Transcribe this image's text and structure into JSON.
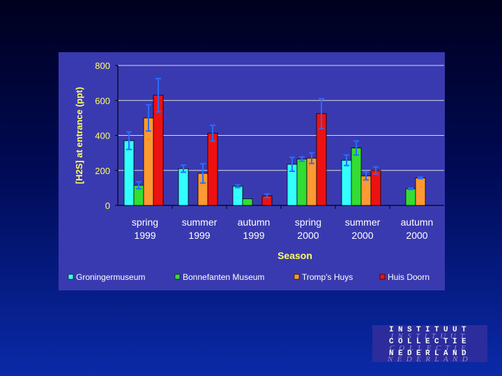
{
  "chart_data": {
    "type": "bar",
    "categories": [
      [
        "spring",
        "1999"
      ],
      [
        "summer",
        "1999"
      ],
      [
        "autumn",
        "1999"
      ],
      [
        "spring",
        "2000"
      ],
      [
        "summer",
        "2000"
      ],
      [
        "autumn",
        "2000"
      ]
    ],
    "series": [
      {
        "name": "Groningermuseum",
        "color": "#33ffff",
        "values": [
          370,
          210,
          110,
          235,
          258,
          null
        ],
        "errors": [
          50,
          20,
          8,
          40,
          30,
          null
        ]
      },
      {
        "name": "Bonnefanten Museum",
        "color": "#33dd33",
        "values": [
          115,
          null,
          38,
          265,
          328,
          95
        ],
        "errors": [
          20,
          null,
          0,
          12,
          40,
          4
        ]
      },
      {
        "name": "Tromp's Huys",
        "color": "#ff9933",
        "values": [
          500,
          183,
          null,
          270,
          168,
          157
        ],
        "errors": [
          75,
          55,
          null,
          30,
          22,
          4
        ]
      },
      {
        "name": "Huis Doorn",
        "color": "#ee1111",
        "values": [
          630,
          413,
          55,
          null,
          200,
          null
        ],
        "errors": [
          95,
          45,
          10,
          null,
          20,
          null
        ]
      }
    ],
    "extra_values": {
      "note_series3_index3": 525
    },
    "xlabel": "Season",
    "ylabel": "[H2S] at entrance (ppt)",
    "ylim": [
      0,
      800
    ],
    "yticks": [
      "0",
      "200",
      "400",
      "600",
      "800"
    ],
    "grid": true,
    "legend": "bottom"
  },
  "logo": {
    "lines": [
      "INSTITUUT",
      "INSTITUUT",
      "COLLECTIE",
      "COLLECTIE",
      "NEDERLAND",
      "NEDERLAND"
    ]
  }
}
